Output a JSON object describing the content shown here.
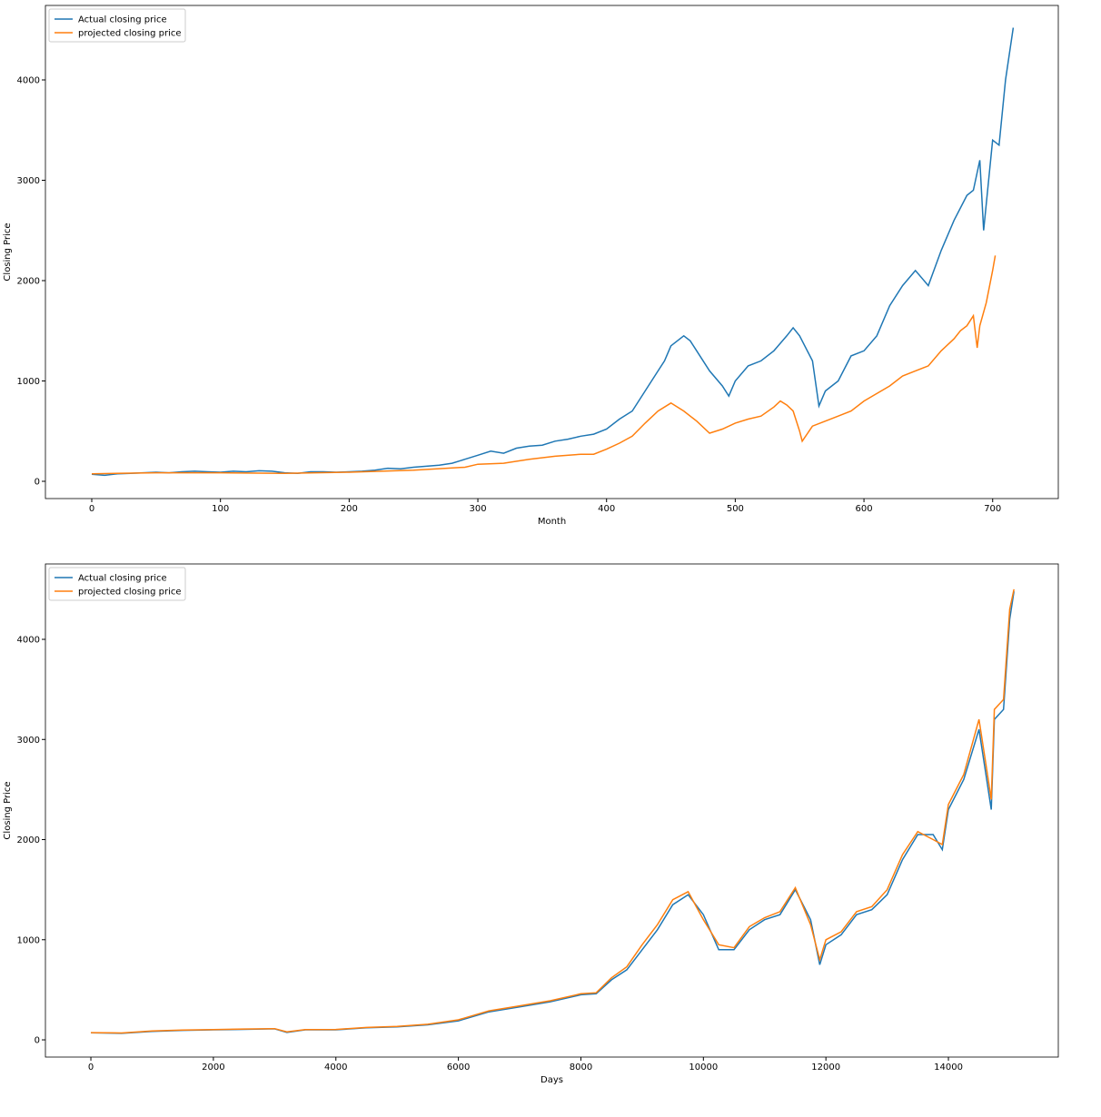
{
  "chart_data": [
    {
      "type": "line",
      "xlabel": "Month",
      "ylabel": "Closing Price",
      "legend": "upper left",
      "xlim": [
        -36,
        751
      ],
      "ylim": [
        -172,
        4742
      ],
      "xticks": [
        0,
        100,
        200,
        300,
        400,
        500,
        600,
        700
      ],
      "yticks": [
        0,
        1000,
        2000,
        3000,
        4000
      ],
      "series": [
        {
          "name": "Actual closing price",
          "color": "#1f77b4",
          "x": [
            0,
            10,
            20,
            30,
            40,
            50,
            60,
            70,
            80,
            90,
            100,
            110,
            120,
            130,
            140,
            150,
            160,
            170,
            180,
            190,
            200,
            210,
            220,
            230,
            240,
            250,
            260,
            270,
            280,
            290,
            300,
            310,
            320,
            330,
            340,
            350,
            360,
            370,
            380,
            390,
            400,
            410,
            420,
            430,
            440,
            445,
            450,
            460,
            465,
            470,
            480,
            490,
            495,
            500,
            510,
            520,
            530,
            540,
            545,
            550,
            560,
            565,
            570,
            580,
            590,
            600,
            610,
            620,
            630,
            640,
            650,
            660,
            670,
            680,
            685,
            690,
            693,
            700,
            705,
            710,
            716
          ],
          "values": [
            70,
            60,
            75,
            80,
            85,
            90,
            85,
            95,
            100,
            95,
            90,
            100,
            95,
            105,
            100,
            85,
            80,
            95,
            95,
            90,
            95,
            100,
            110,
            130,
            125,
            140,
            150,
            160,
            180,
            220,
            260,
            300,
            280,
            330,
            350,
            360,
            400,
            420,
            450,
            470,
            520,
            620,
            700,
            900,
            1100,
            1200,
            1350,
            1450,
            1400,
            1300,
            1100,
            950,
            850,
            1000,
            1150,
            1200,
            1300,
            1450,
            1530,
            1450,
            1200,
            750,
            900,
            1000,
            1250,
            1300,
            1450,
            1750,
            1950,
            2100,
            1950,
            2300,
            2600,
            2850,
            2900,
            3200,
            2500,
            3400,
            3350,
            4000,
            4520
          ]
        },
        {
          "name": "projected closing price",
          "color": "#ff7f0e",
          "x": [
            0,
            50,
            100,
            150,
            200,
            250,
            290,
            300,
            320,
            340,
            360,
            380,
            390,
            400,
            410,
            420,
            430,
            440,
            450,
            460,
            470,
            480,
            490,
            500,
            510,
            520,
            530,
            535,
            540,
            545,
            550,
            552,
            560,
            570,
            580,
            590,
            600,
            620,
            630,
            640,
            650,
            660,
            670,
            675,
            680,
            685,
            688,
            690,
            695,
            700,
            702
          ],
          "values": [
            75,
            85,
            85,
            80,
            90,
            110,
            140,
            170,
            180,
            220,
            250,
            270,
            270,
            320,
            380,
            450,
            580,
            700,
            780,
            700,
            600,
            480,
            520,
            580,
            620,
            650,
            740,
            800,
            760,
            700,
            500,
            400,
            550,
            600,
            650,
            700,
            800,
            950,
            1050,
            1100,
            1150,
            1300,
            1420,
            1500,
            1550,
            1650,
            1330,
            1550,
            1780,
            2100,
            2250
          ]
        }
      ]
    },
    {
      "type": "line",
      "xlabel": "Days",
      "ylabel": "Closing Price",
      "legend": "upper left",
      "xlim": [
        -742,
        15794
      ],
      "ylim": [
        -172,
        4753
      ],
      "xticks": [
        0,
        2000,
        4000,
        6000,
        8000,
        10000,
        12000,
        14000
      ],
      "yticks": [
        0,
        1000,
        2000,
        3000,
        4000
      ],
      "series": [
        {
          "name": "Actual closing price",
          "color": "#1f77b4",
          "x": [
            0,
            500,
            1000,
            1500,
            2000,
            2500,
            3000,
            3200,
            3500,
            4000,
            4500,
            5000,
            5500,
            6000,
            6500,
            7000,
            7500,
            8000,
            8250,
            8500,
            8750,
            9000,
            9250,
            9500,
            9750,
            10000,
            10250,
            10500,
            10750,
            11000,
            11250,
            11500,
            11750,
            11900,
            12000,
            12250,
            12500,
            12750,
            13000,
            13250,
            13500,
            13750,
            13900,
            14000,
            14250,
            14500,
            14600,
            14700,
            14750,
            14900,
            15000,
            15070
          ],
          "values": [
            70,
            65,
            85,
            95,
            100,
            105,
            110,
            75,
            100,
            100,
            120,
            130,
            150,
            190,
            280,
            330,
            380,
            450,
            460,
            600,
            700,
            900,
            1100,
            1350,
            1450,
            1250,
            900,
            900,
            1100,
            1200,
            1250,
            1500,
            1200,
            750,
            950,
            1050,
            1250,
            1300,
            1450,
            1800,
            2050,
            2050,
            1900,
            2300,
            2600,
            3100,
            2700,
            2300,
            3200,
            3300,
            4200,
            4480
          ]
        },
        {
          "name": "projected closing price",
          "color": "#ff7f0e",
          "x": [
            0,
            500,
            1000,
            1500,
            2000,
            2500,
            3000,
            3200,
            3500,
            4000,
            4500,
            5000,
            5500,
            6000,
            6500,
            7000,
            7500,
            8000,
            8250,
            8500,
            8750,
            9000,
            9250,
            9500,
            9750,
            10000,
            10250,
            10500,
            10750,
            11000,
            11250,
            11500,
            11750,
            11900,
            12000,
            12250,
            12500,
            12750,
            13000,
            13250,
            13500,
            13750,
            13900,
            14000,
            14250,
            14500,
            14600,
            14700,
            14750,
            14900,
            15000,
            15070
          ],
          "values": [
            72,
            68,
            88,
            98,
            102,
            108,
            112,
            80,
            102,
            104,
            124,
            135,
            155,
            200,
            290,
            340,
            390,
            460,
            470,
            620,
            730,
            950,
            1150,
            1400,
            1480,
            1200,
            950,
            920,
            1130,
            1220,
            1280,
            1520,
            1150,
            800,
            1000,
            1080,
            1280,
            1330,
            1500,
            1850,
            2080,
            2000,
            1950,
            2350,
            2650,
            3200,
            2800,
            2400,
            3300,
            3400,
            4300,
            4500
          ]
        }
      ]
    }
  ]
}
